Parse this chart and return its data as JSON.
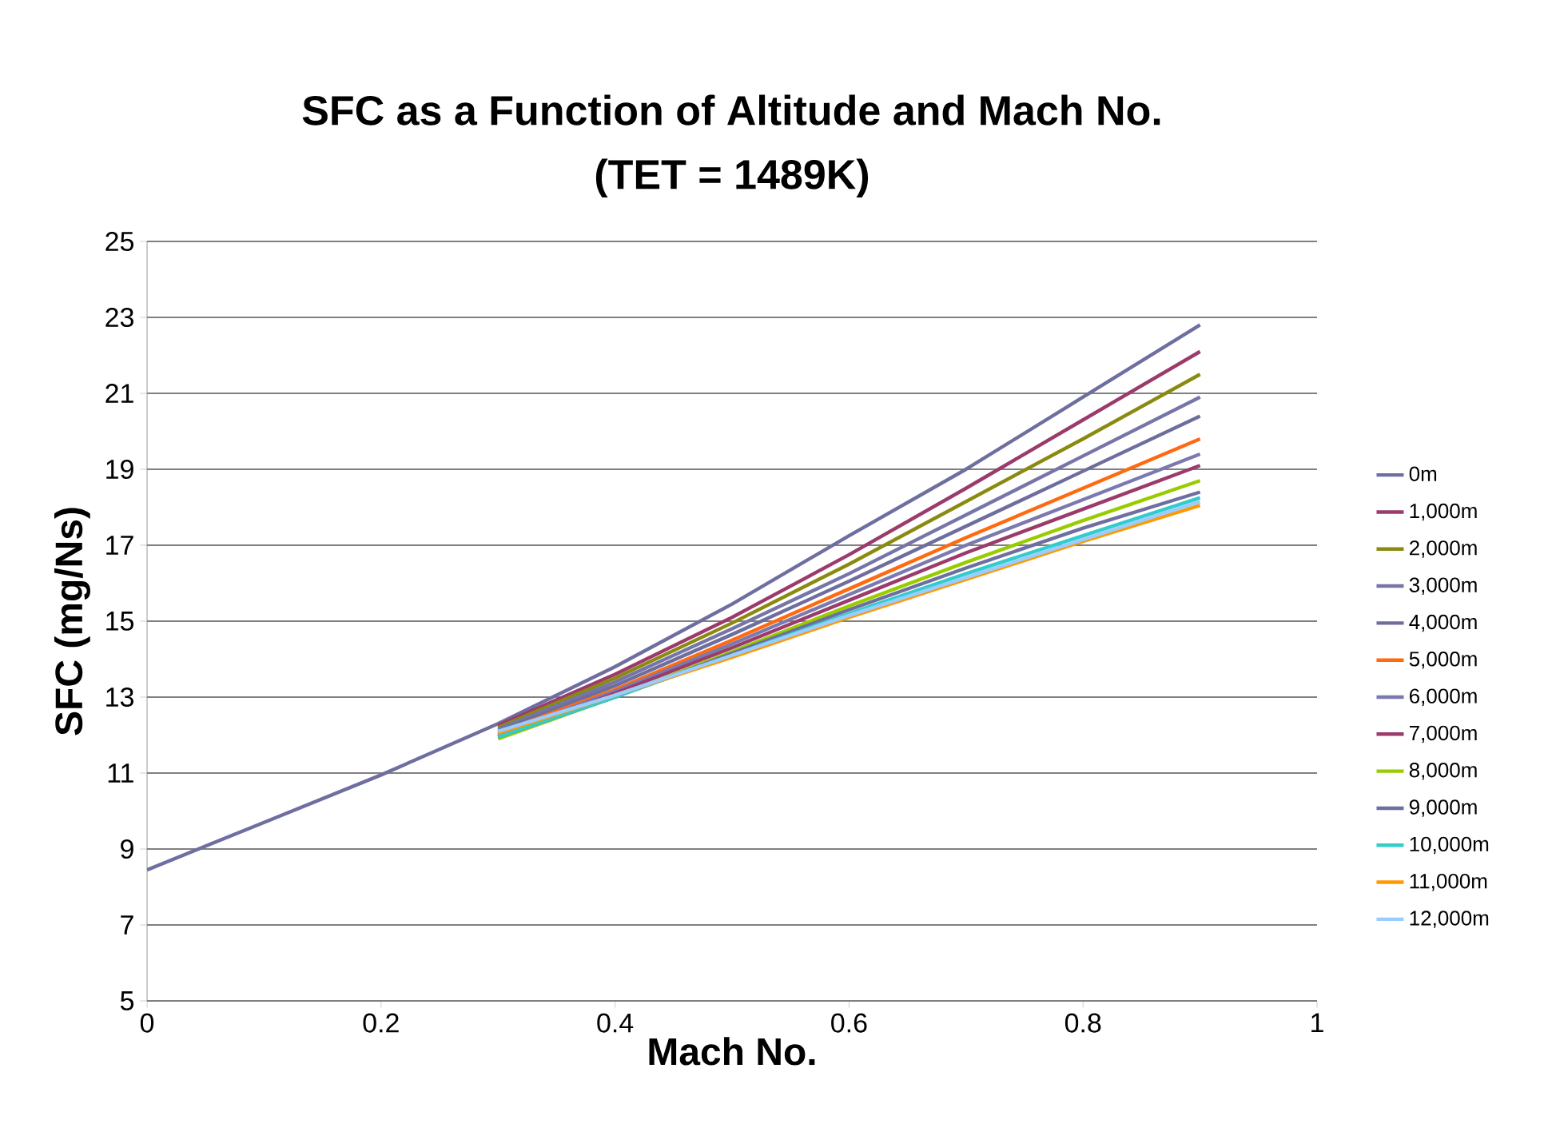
{
  "chart_data": {
    "type": "line",
    "title": "SFC as a Function of Altitude and Mach No.",
    "subtitle": "(TET = 1489K)",
    "xlabel": "Mach No.",
    "ylabel": "SFC (mg/Ns)",
    "xlim": [
      0,
      1
    ],
    "ylim": [
      5,
      25
    ],
    "xticks": [
      0,
      0.2,
      0.4,
      0.6,
      0.8,
      1
    ],
    "yticks": [
      5,
      7,
      9,
      11,
      13,
      15,
      17,
      19,
      21,
      23,
      25
    ],
    "grid": "y",
    "legend": "right",
    "marker": "none",
    "line_style": "solid",
    "series": [
      {
        "name": "0m",
        "color": "#6e6ea0",
        "x": [
          0,
          0.1,
          0.2,
          0.3,
          0.4,
          0.5,
          0.6,
          0.7,
          0.8,
          0.9
        ],
        "values": [
          8.45,
          9.7,
          10.95,
          12.3,
          13.8,
          15.45,
          17.25,
          19.0,
          20.9,
          22.8
        ]
      },
      {
        "name": "1,000m",
        "color": "#9b3b6b",
        "x": [
          0.3,
          0.4,
          0.5,
          0.6,
          0.7,
          0.8,
          0.9
        ],
        "values": [
          12.25,
          13.6,
          15.1,
          16.75,
          18.5,
          20.3,
          22.1
        ]
      },
      {
        "name": "2,000m",
        "color": "#8a8a10",
        "x": [
          0.3,
          0.4,
          0.5,
          0.6,
          0.7,
          0.8,
          0.9
        ],
        "values": [
          12.2,
          13.5,
          14.95,
          16.5,
          18.15,
          19.8,
          21.5
        ]
      },
      {
        "name": "3,000m",
        "color": "#7575a8",
        "x": [
          0.3,
          0.4,
          0.5,
          0.6,
          0.7,
          0.8,
          0.9
        ],
        "values": [
          12.15,
          13.4,
          14.8,
          16.25,
          17.8,
          19.35,
          20.9
        ]
      },
      {
        "name": "4,000m",
        "color": "#6e6e9e",
        "x": [
          0.3,
          0.4,
          0.5,
          0.6,
          0.7,
          0.8,
          0.9
        ],
        "values": [
          12.1,
          13.3,
          14.65,
          16.05,
          17.5,
          18.95,
          20.4
        ]
      },
      {
        "name": "5,000m",
        "color": "#ff6a10",
        "x": [
          0.3,
          0.4,
          0.5,
          0.6,
          0.7,
          0.8,
          0.9
        ],
        "values": [
          12.05,
          13.2,
          14.5,
          15.85,
          17.2,
          18.5,
          19.8
        ]
      },
      {
        "name": "6,000m",
        "color": "#7a7ab0",
        "x": [
          0.3,
          0.4,
          0.5,
          0.6,
          0.7,
          0.8,
          0.9
        ],
        "values": [
          12.0,
          13.15,
          14.4,
          15.7,
          17.0,
          18.2,
          19.4
        ]
      },
      {
        "name": "7,000m",
        "color": "#9b3b6b",
        "x": [
          0.3,
          0.4,
          0.5,
          0.6,
          0.7,
          0.8,
          0.9
        ],
        "values": [
          11.95,
          13.1,
          14.3,
          15.55,
          16.8,
          17.95,
          19.1
        ]
      },
      {
        "name": "8,000m",
        "color": "#99cc00",
        "x": [
          0.3,
          0.4,
          0.5,
          0.6,
          0.7,
          0.8,
          0.9
        ],
        "values": [
          11.9,
          13.0,
          14.2,
          15.4,
          16.55,
          17.65,
          18.7
        ]
      },
      {
        "name": "9,000m",
        "color": "#6e6ea0",
        "x": [
          0.3,
          0.4,
          0.5,
          0.6,
          0.7,
          0.8,
          0.9
        ],
        "values": [
          11.95,
          13.0,
          14.15,
          15.3,
          16.4,
          17.45,
          18.4
        ]
      },
      {
        "name": "10,000m",
        "color": "#33cccc",
        "x": [
          0.3,
          0.4,
          0.5,
          0.6,
          0.7,
          0.8,
          0.9
        ],
        "values": [
          11.95,
          13.0,
          14.1,
          15.2,
          16.25,
          17.25,
          18.25
        ]
      },
      {
        "name": "11,000m",
        "color": "#ff9900",
        "x": [
          0.3,
          0.4,
          0.5,
          0.6,
          0.7,
          0.8,
          0.9
        ],
        "values": [
          12.05,
          13.05,
          14.05,
          15.1,
          16.1,
          17.1,
          18.05
        ]
      },
      {
        "name": "12,000m",
        "color": "#99ccff",
        "x": [
          0.3,
          0.4,
          0.5,
          0.6,
          0.7,
          0.8,
          0.9
        ],
        "values": [
          12.1,
          13.05,
          14.1,
          15.15,
          16.15,
          17.15,
          18.15
        ]
      }
    ]
  }
}
